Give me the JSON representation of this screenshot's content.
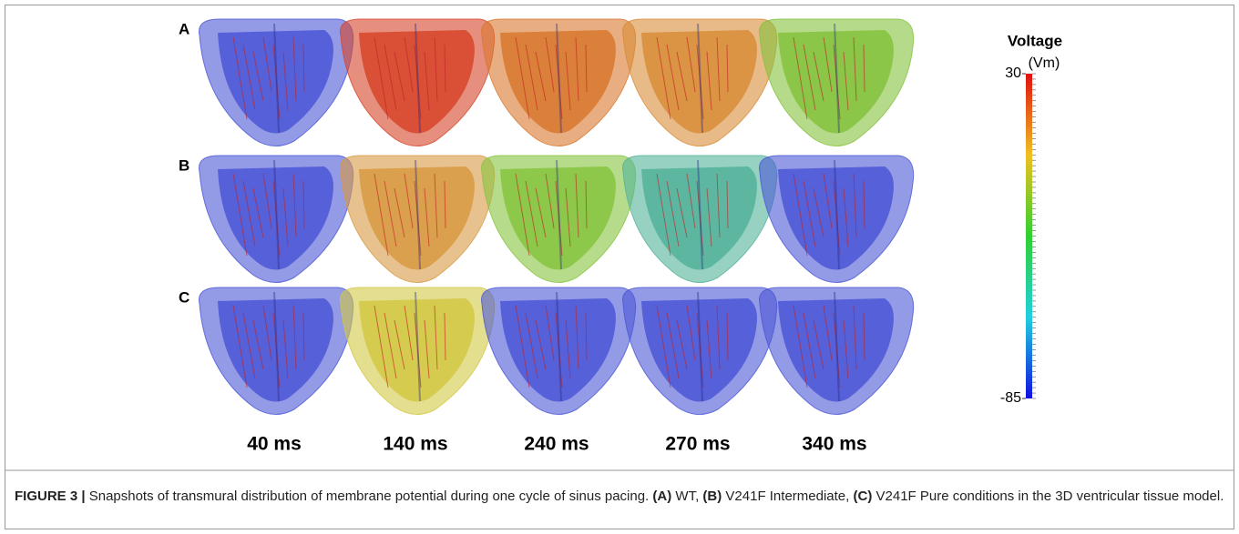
{
  "figure": {
    "rows": [
      {
        "label": "A",
        "colors": [
          "#4b56d6",
          "#d6452a",
          "#d8782e",
          "#d88c38",
          "#84c23c"
        ]
      },
      {
        "label": "B",
        "colors": [
          "#4b56d6",
          "#d89a42",
          "#86c43e",
          "#52b39a",
          "#4b56d6"
        ]
      },
      {
        "label": "C",
        "colors": [
          "#4b56d6",
          "#d2c844",
          "#4b56d6",
          "#4b56d6",
          "#4b56d6"
        ]
      }
    ],
    "columns": [
      "40 ms",
      "140 ms",
      "240 ms",
      "270 ms",
      "340 ms"
    ],
    "colorbar": {
      "title": "Voltage",
      "unit": "(Vm)",
      "range": [
        -85,
        30
      ],
      "ticks": [
        30,
        -85
      ]
    }
  },
  "caption": {
    "label": "FIGURE 3 |",
    "segments": [
      "Snapshots of transmural distribution of membrane potential during one cycle of sinus pacing.",
      "(A)",
      "WT,",
      "(B)",
      "V241F Intermediate,",
      "(C)",
      "V241F Pure conditions in the 3D ventricular tissue model."
    ]
  }
}
